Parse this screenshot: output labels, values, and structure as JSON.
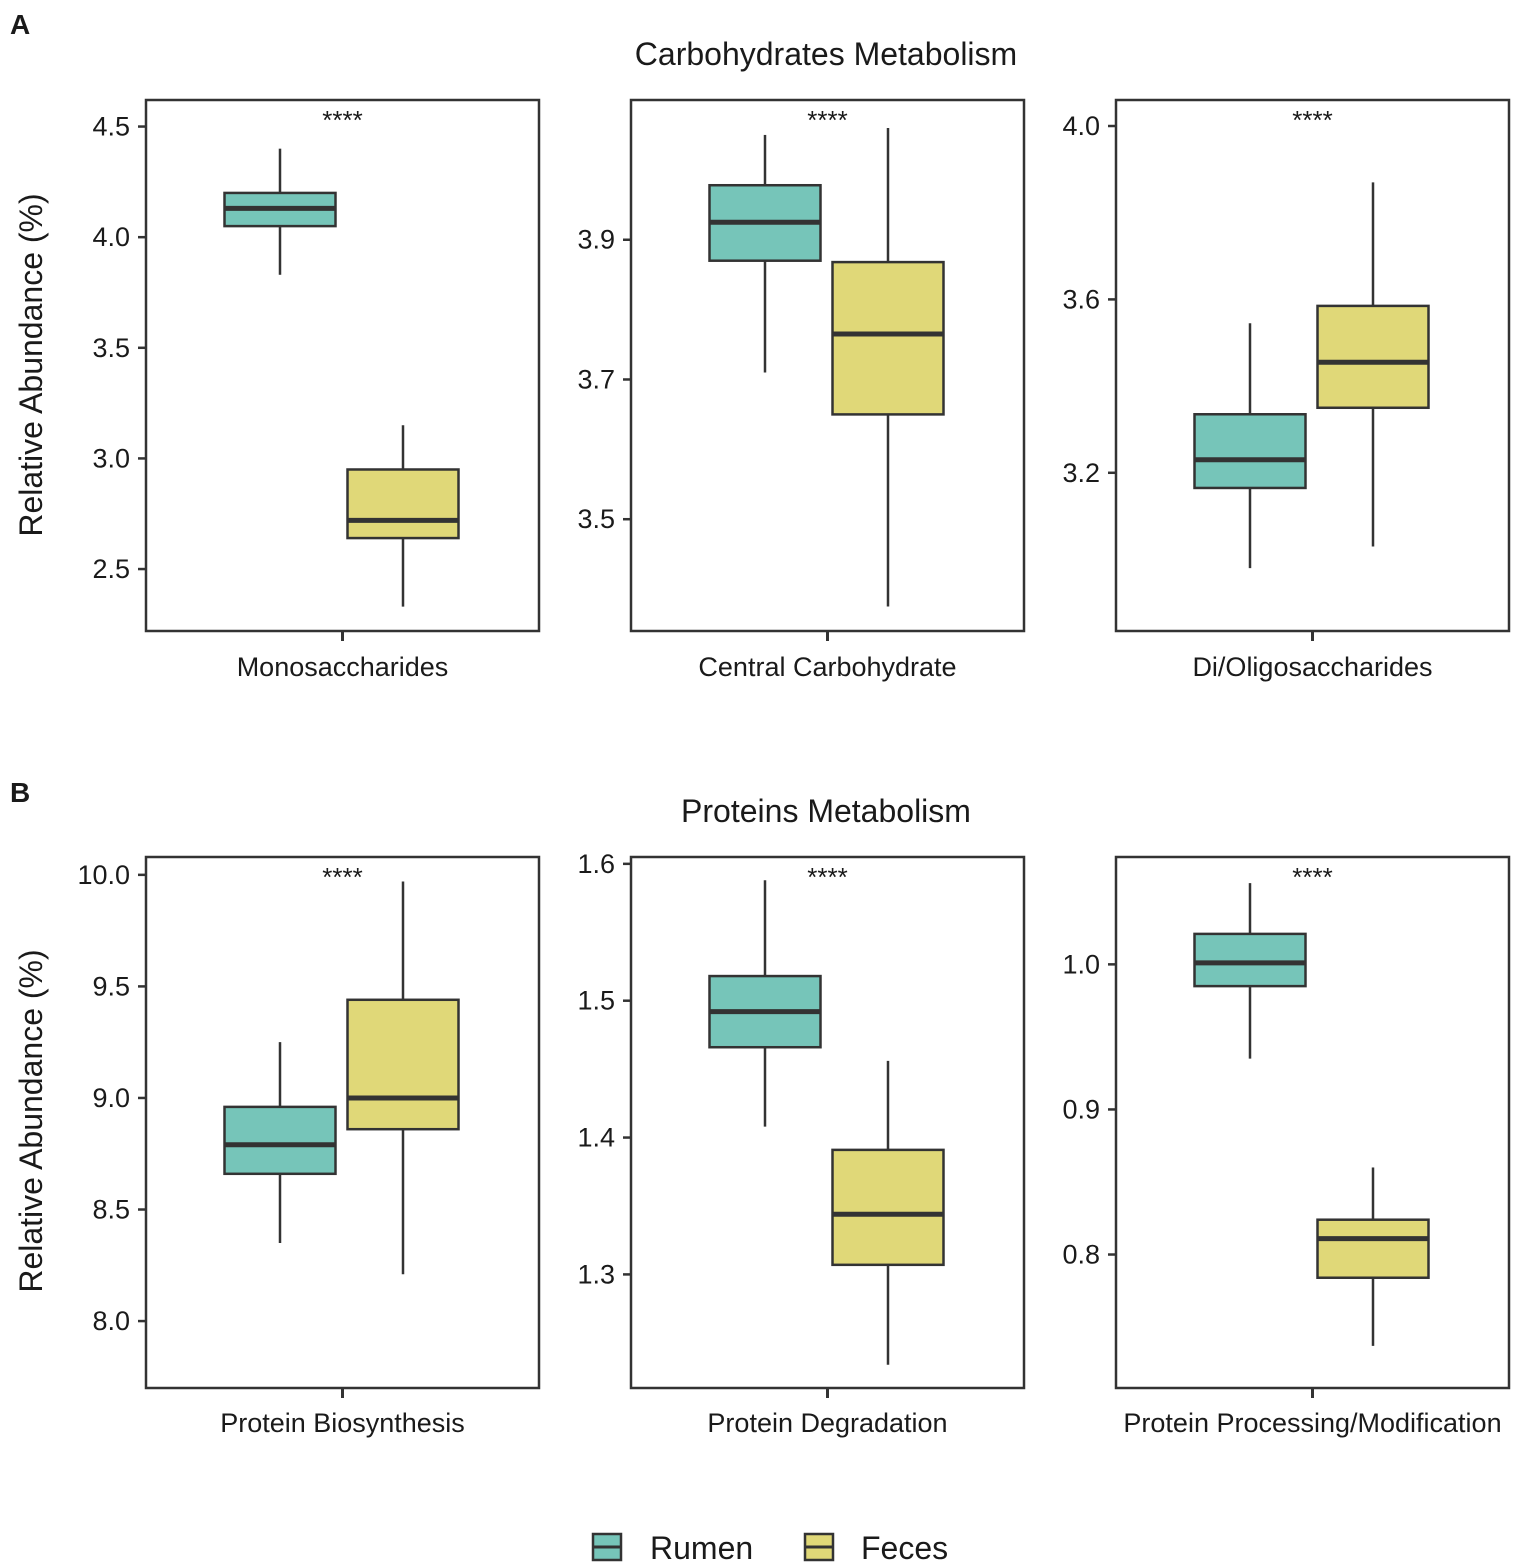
{
  "legend": {
    "items": [
      {
        "label": "Rumen",
        "color": "#76c5b9"
      },
      {
        "label": "Feces",
        "color": "#e0d878"
      }
    ]
  },
  "colors": {
    "rumen": "#76c5b9",
    "feces": "#e0d878",
    "stroke": "#333333"
  },
  "chart_data": [
    {
      "panel": "A",
      "title": "Carbohydrates Metabolism",
      "ylabel": "Relative Abundance (%)",
      "charts": [
        {
          "type": "box",
          "category": "Monosaccharides",
          "significance": "****",
          "ylim": [
            2.22,
            4.62
          ],
          "ticks": [
            2.5,
            3.0,
            3.5,
            4.0,
            4.5
          ],
          "tick_labels": [
            "2.5",
            "3.0",
            "3.5",
            "4.0",
            "4.5"
          ],
          "series": [
            {
              "name": "Rumen",
              "whisker_low": 3.83,
              "q1": 4.05,
              "median": 4.13,
              "q3": 4.2,
              "whisker_high": 4.4
            },
            {
              "name": "Feces",
              "whisker_low": 2.33,
              "q1": 2.64,
              "median": 2.72,
              "q3": 2.95,
              "whisker_high": 3.15
            }
          ]
        },
        {
          "type": "box",
          "category": "Central Carbohydrate",
          "significance": "****",
          "ylim": [
            3.34,
            4.1
          ],
          "ticks": [
            3.5,
            3.7,
            3.9
          ],
          "tick_labels": [
            "3.5",
            "3.7",
            "3.9"
          ],
          "series": [
            {
              "name": "Rumen",
              "whisker_low": 3.71,
              "q1": 3.87,
              "median": 3.925,
              "q3": 3.978,
              "whisker_high": 4.05
            },
            {
              "name": "Feces",
              "whisker_low": 3.375,
              "q1": 3.65,
              "median": 3.765,
              "q3": 3.868,
              "whisker_high": 4.06
            }
          ]
        },
        {
          "type": "box",
          "category": "Di/Oligosaccharides",
          "significance": "****",
          "ylim": [
            2.835,
            4.06
          ],
          "ticks": [
            3.2,
            3.6,
            4.0
          ],
          "tick_labels": [
            "3.2",
            "3.6",
            "4.0"
          ],
          "series": [
            {
              "name": "Rumen",
              "whisker_low": 2.98,
              "q1": 3.165,
              "median": 3.23,
              "q3": 3.335,
              "whisker_high": 3.545
            },
            {
              "name": "Feces",
              "whisker_low": 3.03,
              "q1": 3.35,
              "median": 3.455,
              "q3": 3.585,
              "whisker_high": 3.87
            }
          ]
        }
      ]
    },
    {
      "panel": "B",
      "title": "Proteins Metabolism",
      "ylabel": "Relative Abundance (%)",
      "charts": [
        {
          "type": "box",
          "category": "Protein Biosynthesis",
          "significance": "****",
          "ylim": [
            7.7,
            10.08
          ],
          "ticks": [
            8.0,
            8.5,
            9.0,
            9.5,
            10.0
          ],
          "tick_labels": [
            "8.0",
            "8.5",
            "9.0",
            "9.5",
            "10.0"
          ],
          "series": [
            {
              "name": "Rumen",
              "whisker_low": 8.35,
              "q1": 8.66,
              "median": 8.79,
              "q3": 8.96,
              "whisker_high": 9.25
            },
            {
              "name": "Feces",
              "whisker_low": 8.21,
              "q1": 8.86,
              "median": 9.0,
              "q3": 9.44,
              "whisker_high": 9.97
            }
          ]
        },
        {
          "type": "box",
          "category": "Protein Degradation",
          "significance": "****",
          "ylim": [
            1.217,
            1.605
          ],
          "ticks": [
            1.3,
            1.4,
            1.5,
            1.6
          ],
          "tick_labels": [
            "1.3",
            "1.4",
            "1.5",
            "1.6"
          ],
          "series": [
            {
              "name": "Rumen",
              "whisker_low": 1.408,
              "q1": 1.466,
              "median": 1.492,
              "q3": 1.518,
              "whisker_high": 1.588
            },
            {
              "name": "Feces",
              "whisker_low": 1.234,
              "q1": 1.307,
              "median": 1.344,
              "q3": 1.391,
              "whisker_high": 1.456
            }
          ]
        },
        {
          "type": "box",
          "category": "Protein Processing/Modification",
          "significance": "****",
          "ylim": [
            0.708,
            1.074
          ],
          "ticks": [
            0.8,
            0.9,
            1.0
          ],
          "tick_labels": [
            "0.8",
            "0.9",
            "1.0"
          ],
          "series": [
            {
              "name": "Rumen",
              "whisker_low": 0.935,
              "q1": 0.985,
              "median": 1.001,
              "q3": 1.021,
              "whisker_high": 1.056
            },
            {
              "name": "Feces",
              "whisker_low": 0.737,
              "q1": 0.784,
              "median": 0.811,
              "q3": 0.824,
              "whisker_high": 0.86
            }
          ]
        }
      ]
    }
  ]
}
